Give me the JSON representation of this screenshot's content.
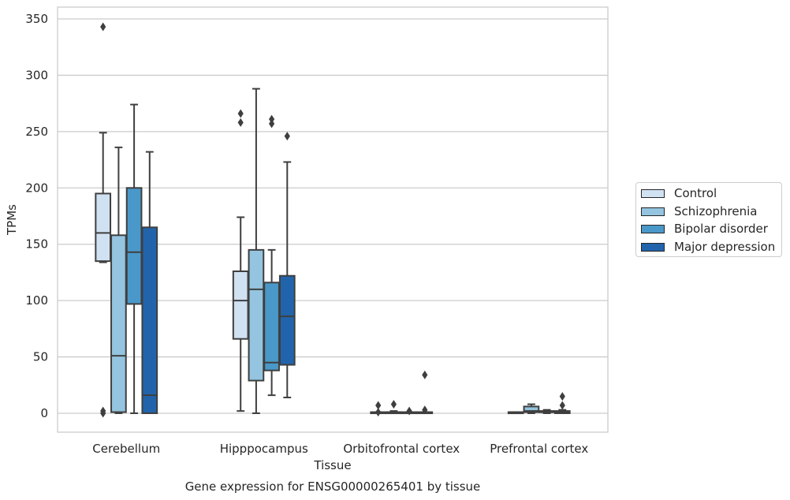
{
  "chart_data": {
    "type": "box",
    "title": "Gene expression for ENSG00000265401 by tissue",
    "xlabel": "Tissue",
    "ylabel": "TPMs",
    "ylim": [
      -16,
      360
    ],
    "yticks": [
      0,
      50,
      100,
      150,
      200,
      250,
      300,
      350
    ],
    "grid": "horizontal",
    "legend_position": "right",
    "categories": [
      "Cerebellum",
      "Hipppocampus",
      "Orbitofrontal cortex",
      "Prefrontal cortex"
    ],
    "series": [
      {
        "name": "Control",
        "color": "#d0e1f2",
        "boxes": [
          {
            "whisker_low": 134,
            "q1": 135,
            "median": 160,
            "q3": 195,
            "whisker_high": 249,
            "outliers": [
              343,
              2,
              0
            ]
          },
          {
            "whisker_low": 2,
            "q1": 66,
            "median": 100,
            "q3": 126,
            "whisker_high": 174,
            "outliers": [
              266,
              258
            ]
          },
          {
            "whisker_low": 0,
            "q1": 0,
            "median": 0,
            "q3": 1,
            "whisker_high": 1,
            "outliers": [
              7,
              1
            ]
          },
          {
            "whisker_low": 0,
            "q1": 0,
            "median": 1,
            "q3": 1,
            "whisker_high": 1,
            "outliers": []
          }
        ]
      },
      {
        "name": "Schizophrenia",
        "color": "#94c4df",
        "boxes": [
          {
            "whisker_low": 0,
            "q1": 1,
            "median": 51,
            "q3": 158,
            "whisker_high": 236,
            "outliers": []
          },
          {
            "whisker_low": 0,
            "q1": 29,
            "median": 110,
            "q3": 145,
            "whisker_high": 288,
            "outliers": []
          },
          {
            "whisker_low": 0,
            "q1": 0,
            "median": 1,
            "q3": 1,
            "whisker_high": 2,
            "outliers": [
              8
            ]
          },
          {
            "whisker_low": 0,
            "q1": 1,
            "median": 2,
            "q3": 6,
            "whisker_high": 8,
            "outliers": []
          }
        ]
      },
      {
        "name": "Bipolar disorder",
        "color": "#4a98c9",
        "boxes": [
          {
            "whisker_low": 0,
            "q1": 97,
            "median": 143,
            "q3": 200,
            "whisker_high": 274,
            "outliers": []
          },
          {
            "whisker_low": 16,
            "q1": 38,
            "median": 45,
            "q3": 116,
            "whisker_high": 145,
            "outliers": [
              261,
              257
            ]
          },
          {
            "whisker_low": 0,
            "q1": 0,
            "median": 0,
            "q3": 1,
            "whisker_high": 1,
            "outliers": [
              2
            ]
          },
          {
            "whisker_low": 0,
            "q1": 1,
            "median": 1,
            "q3": 2,
            "whisker_high": 3,
            "outliers": []
          }
        ]
      },
      {
        "name": "Major depression",
        "color": "#2164ab",
        "boxes": [
          {
            "whisker_low": 0,
            "q1": 0,
            "median": 16,
            "q3": 165,
            "whisker_high": 232,
            "outliers": []
          },
          {
            "whisker_low": 14,
            "q1": 43,
            "median": 86,
            "q3": 122,
            "whisker_high": 223,
            "outliers": [
              246
            ]
          },
          {
            "whisker_low": 0,
            "q1": 0,
            "median": 0,
            "q3": 1,
            "whisker_high": 1,
            "outliers": [
              34,
              3
            ]
          },
          {
            "whisker_low": 0,
            "q1": 0,
            "median": 1,
            "q3": 2,
            "whisker_high": 3,
            "outliers": [
              15,
              7
            ]
          }
        ]
      }
    ]
  }
}
